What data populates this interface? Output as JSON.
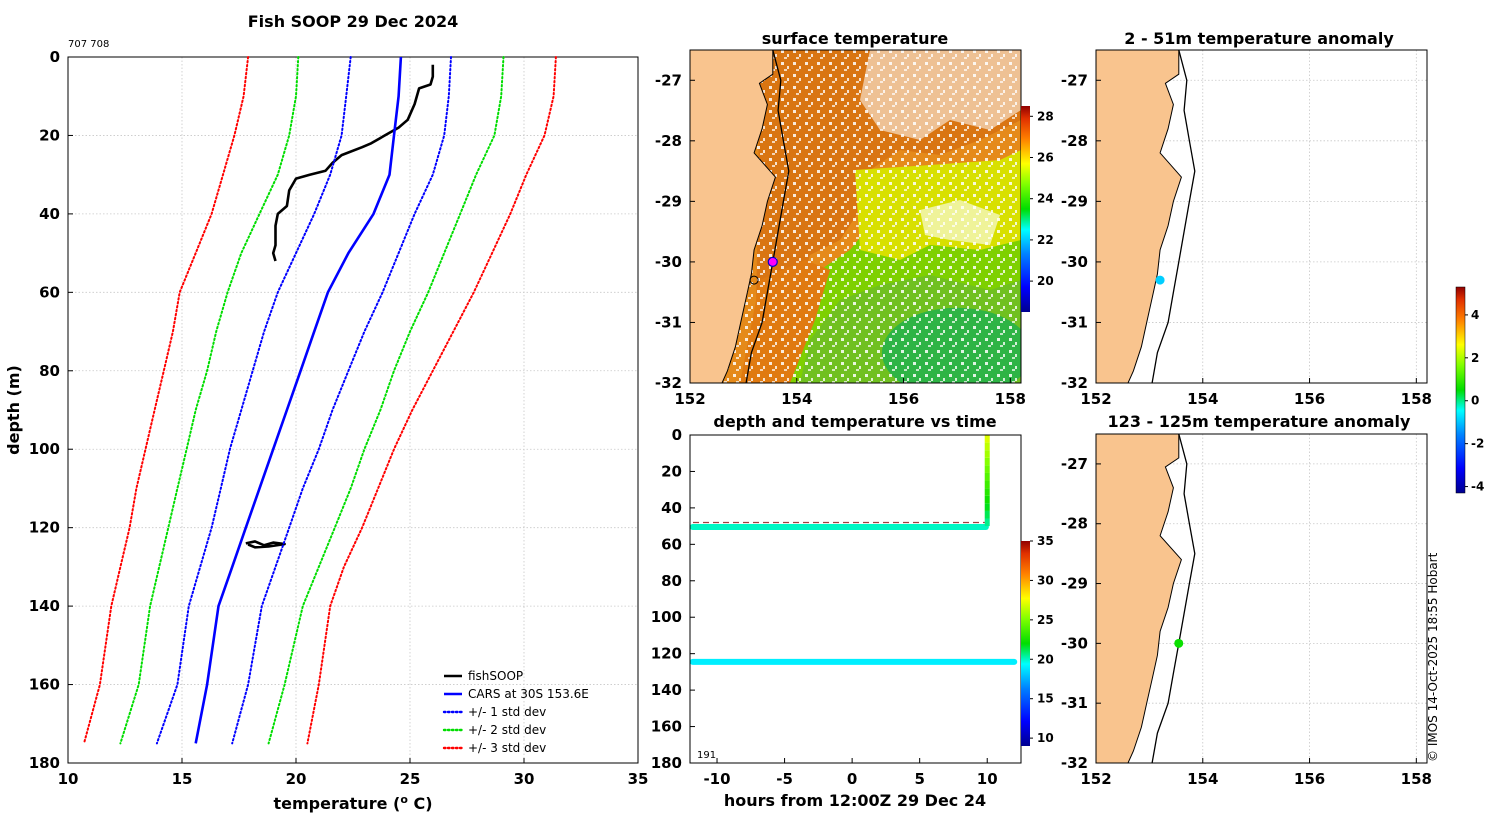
{
  "figure": {
    "id_label": "707 708",
    "copyright": "© IMOS 14-Oct-2025 18:55 Hobart",
    "sample_count": "191"
  },
  "chart_data": [
    {
      "name": "profile",
      "type": "line",
      "title": "Fish SOOP 29 Dec 2024",
      "xlabel": "temperature (",
      "xlabel_sup": "o",
      "xlabel_end": " C)",
      "ylabel": "depth (m)",
      "xlim": [
        10,
        35
      ],
      "ylim": [
        180,
        0
      ],
      "xticks": [
        10,
        15,
        20,
        25,
        30,
        35
      ],
      "yticks": [
        0,
        20,
        40,
        60,
        80,
        100,
        120,
        140,
        160,
        180
      ],
      "grid": true,
      "legend_position": "bottom-right",
      "series": [
        {
          "name": "fishSOOP",
          "color": "#000000",
          "style": "solid",
          "x": [
            26.0,
            26.0,
            25.9,
            25.4,
            25.2,
            24.9,
            24.5,
            23.9,
            23.3,
            22.9,
            22.0,
            21.6,
            21.3,
            20.6,
            20.0,
            19.7,
            19.6,
            19.2,
            19.1,
            19.1,
            19.1,
            19.0,
            19.1
          ],
          "y": [
            2,
            5,
            7,
            8,
            12,
            16,
            18,
            20,
            22,
            23,
            25,
            27,
            29,
            30,
            31,
            34,
            38,
            40,
            43,
            46,
            48,
            50,
            52
          ]
        },
        {
          "name": "fishSOOP deep",
          "color": "#000000",
          "style": "solid",
          "x": [
            17.8,
            18.2,
            18.6,
            19.0,
            19.5,
            18.8,
            18.2,
            17.9
          ],
          "y": [
            124,
            123.5,
            124.5,
            123.8,
            124.2,
            124.8,
            125,
            124.3
          ]
        },
        {
          "name": "CARS at 30S 153.6E",
          "color": "#0000ff",
          "style": "solid",
          "x": [
            24.6,
            24.5,
            24.3,
            24.1,
            23.4,
            22.3,
            21.4,
            20.8,
            20.2,
            19.6,
            19.0,
            18.4,
            17.8,
            17.2,
            16.6,
            16.1,
            15.6
          ],
          "y": [
            0,
            10,
            20,
            30,
            40,
            50,
            60,
            70,
            80,
            90,
            100,
            110,
            120,
            130,
            140,
            160,
            175
          ]
        },
        {
          "name": "+/- 1 std dev",
          "color": "#0000ff",
          "style": "dotted",
          "x": [
            22.4,
            22.2,
            22.0,
            21.5,
            20.8,
            20.0,
            19.2,
            18.6,
            18.1,
            17.6,
            17.1,
            16.7,
            16.3,
            15.8,
            15.3,
            14.8,
            13.9
          ],
          "y": [
            0,
            10,
            20,
            30,
            40,
            50,
            60,
            70,
            80,
            90,
            100,
            110,
            120,
            130,
            140,
            160,
            175
          ]
        },
        {
          "name": "+/- 1 std dev upper",
          "color": "#0000ff",
          "style": "dotted",
          "x": [
            26.8,
            26.7,
            26.5,
            26.0,
            25.2,
            24.5,
            23.8,
            23.0,
            22.3,
            21.6,
            21.0,
            20.3,
            19.7,
            19.1,
            18.5,
            17.9,
            17.2
          ],
          "y": [
            0,
            10,
            20,
            30,
            40,
            50,
            60,
            70,
            80,
            90,
            100,
            110,
            120,
            130,
            140,
            160,
            175
          ]
        },
        {
          "name": "+/- 2 std dev",
          "color": "#00dd00",
          "style": "dotted",
          "x": [
            20.1,
            20.0,
            19.7,
            19.2,
            18.4,
            17.6,
            17.0,
            16.5,
            16.1,
            15.6,
            15.2,
            14.8,
            14.4,
            14.0,
            13.6,
            13.1,
            12.3
          ],
          "y": [
            0,
            10,
            20,
            30,
            40,
            50,
            60,
            70,
            80,
            90,
            100,
            110,
            120,
            130,
            140,
            160,
            175
          ]
        },
        {
          "name": "+/- 2 std dev upper",
          "color": "#00dd00",
          "style": "dotted",
          "x": [
            29.1,
            29.0,
            28.7,
            27.9,
            27.2,
            26.5,
            25.8,
            25.0,
            24.3,
            23.7,
            23.0,
            22.4,
            21.7,
            21.0,
            20.3,
            19.5,
            18.8
          ],
          "y": [
            0,
            10,
            20,
            30,
            40,
            50,
            60,
            70,
            80,
            90,
            100,
            110,
            120,
            130,
            140,
            160,
            175
          ]
        },
        {
          "name": "+/- 3 std dev",
          "color": "#ff0000",
          "style": "dotted",
          "x": [
            17.9,
            17.7,
            17.3,
            16.8,
            16.3,
            15.6,
            14.9,
            14.6,
            14.2,
            13.8,
            13.4,
            13.0,
            12.7,
            12.3,
            11.9,
            11.4,
            10.7
          ],
          "y": [
            0,
            10,
            20,
            30,
            40,
            50,
            60,
            70,
            80,
            90,
            100,
            110,
            120,
            130,
            140,
            160,
            175
          ]
        },
        {
          "name": "+/- 3 std dev upper",
          "color": "#ff0000",
          "style": "dotted",
          "x": [
            31.4,
            31.3,
            30.9,
            30.1,
            29.4,
            28.6,
            27.8,
            26.9,
            26.0,
            25.1,
            24.3,
            23.6,
            22.9,
            22.1,
            21.5,
            21.0,
            20.5
          ],
          "y": [
            0,
            10,
            20,
            30,
            40,
            50,
            60,
            70,
            80,
            90,
            100,
            110,
            120,
            130,
            140,
            160,
            175
          ]
        }
      ],
      "legend": [
        {
          "label": "fishSOOP",
          "color": "#000000",
          "style": "solid"
        },
        {
          "label": "CARS at 30S 153.6E",
          "color": "#0000ff",
          "style": "solid"
        },
        {
          "label": "+/- 1 std dev",
          "color": "#0000ff",
          "style": "dotted"
        },
        {
          "label": "+/- 2 std dev",
          "color": "#00dd00",
          "style": "dotted"
        },
        {
          "label": "+/- 3 std dev",
          "color": "#ff0000",
          "style": "dotted"
        }
      ]
    },
    {
      "name": "sst_map",
      "type": "heatmap",
      "title": "surface temperature",
      "xlim": [
        152,
        158.2
      ],
      "ylim": [
        -32,
        -26.5
      ],
      "xticks": [
        152,
        154,
        156,
        158
      ],
      "yticks": [
        -27,
        -28,
        -29,
        -30,
        -31,
        -32
      ],
      "colorbar": {
        "range": [
          18.5,
          28.5
        ],
        "ticks": [
          20,
          22,
          24,
          26,
          28
        ]
      },
      "vessel_position": [
        153.55,
        -30.0
      ],
      "other_marker": [
        153.2,
        -30.3
      ],
      "warm_region_lon_max": 155.3,
      "eddy_center": [
        157.0,
        -31.5
      ]
    },
    {
      "name": "time_series",
      "type": "scatter",
      "title": "depth and temperature vs time",
      "xlabel": "hours from 12:00Z 29 Dec 24",
      "xlim": [
        -12,
        12.5
      ],
      "ylim": [
        180,
        0
      ],
      "xticks": [
        -10,
        -5,
        0,
        5,
        10
      ],
      "yticks": [
        0,
        20,
        40,
        60,
        80,
        100,
        120,
        140,
        160,
        180
      ],
      "colorbar": {
        "range": [
          9,
          35
        ],
        "ticks": [
          10,
          15,
          20,
          25,
          30,
          35
        ]
      },
      "reference_depth": 48,
      "series": [
        {
          "name": "shallow logger",
          "depth": 50.5,
          "temperature": 20.0,
          "t_range": [
            -11.8,
            9.9
          ]
        },
        {
          "name": "deep logger",
          "depth": 124.5,
          "temperature": 19.0,
          "t_range": [
            -11.8,
            12.0
          ]
        },
        {
          "name": "recovery",
          "t": 10.0,
          "depth_from": 50,
          "depth_to": 0,
          "temp_from": 20,
          "temp_to": 27
        }
      ]
    },
    {
      "name": "anomaly_shallow",
      "type": "scatter",
      "title": "2 - 51m temperature anomaly",
      "xlim": [
        152,
        158.2
      ],
      "ylim": [
        -32,
        -26.5
      ],
      "xticks": [
        152,
        154,
        156,
        158
      ],
      "yticks": [
        -27,
        -28,
        -29,
        -30,
        -31,
        -32
      ],
      "points": [
        {
          "lon": 153.2,
          "lat": -30.3,
          "anomaly": -0.9
        }
      ]
    },
    {
      "name": "anomaly_deep",
      "type": "scatter",
      "title": "123 - 125m temperature anomaly",
      "xlim": [
        152,
        158.2
      ],
      "ylim": [
        -32,
        -26.5
      ],
      "xticks": [
        152,
        154,
        156,
        158
      ],
      "yticks": [
        -27,
        -28,
        -29,
        -30,
        -31,
        -32
      ],
      "points": [
        {
          "lon": 153.55,
          "lat": -30.0,
          "anomaly": 0.6
        }
      ]
    },
    {
      "name": "anomaly_colorbar",
      "type": "heatmap",
      "range": [
        -4.3,
        5.3
      ],
      "ticks": [
        -4,
        -2,
        0,
        2,
        4
      ]
    }
  ],
  "colors": {
    "land": "#f9c48e",
    "coast": "#000000",
    "contour": "#000000",
    "vessel_marker": "#ff00ff",
    "grid": "#c8c8c8"
  }
}
